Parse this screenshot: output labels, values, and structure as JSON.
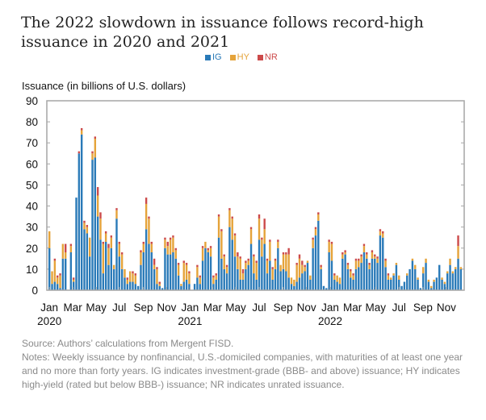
{
  "chart_data": {
    "type": "bar",
    "stacked": true,
    "title": "The 2022 slowdown in issuance follows record-high issuance in 2020 and 2021",
    "ylabel": "Issuance (in billions of U.S. dollars)",
    "xlabel": "",
    "ylim": [
      0,
      90
    ],
    "yticks": [
      0,
      10,
      20,
      30,
      40,
      50,
      60,
      70,
      80,
      90
    ],
    "grid": false,
    "legend_position": "top-center",
    "x_frequency": "weekly",
    "x_range": [
      "Jan 2020",
      "Nov 2022"
    ],
    "xtick_labels": [
      {
        "month": "Jan",
        "year": "2020",
        "week": 0
      },
      {
        "month": "Mar",
        "year": "",
        "week": 8.7
      },
      {
        "month": "May",
        "year": "",
        "week": 17.4
      },
      {
        "month": "Jul",
        "year": "",
        "week": 26
      },
      {
        "month": "Sep",
        "year": "",
        "week": 34.9
      },
      {
        "month": "Nov",
        "year": "",
        "week": 43.6
      },
      {
        "month": "Jan",
        "year": "2021",
        "week": 52.3
      },
      {
        "month": "Mar",
        "year": "",
        "week": 60.7
      },
      {
        "month": "May",
        "year": "",
        "week": 69.3
      },
      {
        "month": "Jul",
        "year": "",
        "week": 78
      },
      {
        "month": "Sep",
        "year": "",
        "week": 86.9
      },
      {
        "month": "Nov",
        "year": "",
        "week": 95.6
      },
      {
        "month": "Jan",
        "year": "2022",
        "week": 104.4
      },
      {
        "month": "Mar",
        "year": "",
        "week": 112.7
      },
      {
        "month": "May",
        "year": "",
        "week": 121.3
      },
      {
        "month": "Jul",
        "year": "",
        "week": 130
      },
      {
        "month": "Sep",
        "year": "",
        "week": 138.9
      },
      {
        "month": "Nov",
        "year": "",
        "week": 147.6
      }
    ],
    "series": [
      {
        "name": "IG",
        "color": "#2a7ab8",
        "values": [
          20,
          3,
          4,
          3,
          1,
          15,
          15,
          0,
          18,
          4,
          44,
          65,
          74,
          29,
          27,
          16,
          62,
          63,
          35,
          24,
          8,
          23,
          12,
          20,
          10,
          34,
          16,
          10,
          6,
          3,
          4,
          4,
          3,
          2,
          12,
          18,
          29,
          22,
          18,
          10,
          3,
          2,
          1,
          20,
          17,
          17,
          18,
          15,
          7,
          2,
          4,
          5,
          3,
          0,
          3,
          6,
          3,
          14,
          20,
          18,
          16,
          3,
          5,
          25,
          15,
          10,
          8,
          30,
          24,
          16,
          10,
          5,
          5,
          10,
          12,
          22,
          8,
          5,
          24,
          16,
          22,
          8,
          14,
          5,
          10,
          20,
          9,
          10,
          9,
          6,
          3,
          2,
          4,
          6,
          8,
          9,
          13,
          5,
          20,
          26,
          33,
          10,
          2,
          1,
          18,
          14,
          5,
          4,
          3,
          15,
          17,
          10,
          6,
          5,
          10,
          11,
          13,
          18,
          15,
          10,
          15,
          15,
          13,
          26,
          25,
          11,
          5,
          5,
          7,
          12,
          5,
          2,
          4,
          7,
          10,
          14,
          10,
          5,
          1,
          8,
          13,
          4,
          1,
          4,
          6,
          12,
          5,
          3,
          8,
          12,
          8,
          10,
          15,
          10
        ],
        "values_note": "estimated from bar heights"
      },
      {
        "name": "HY",
        "color": "#e5a33a",
        "values": [
          8,
          6,
          10,
          3,
          6,
          7,
          3,
          0,
          3,
          1,
          0,
          0,
          2,
          3,
          3,
          9,
          3,
          9,
          10,
          10,
          14,
          4,
          8,
          5,
          2,
          4,
          6,
          7,
          4,
          2,
          5,
          4,
          4,
          0,
          6,
          4,
          12,
          12,
          4,
          2,
          7,
          1,
          0,
          4,
          4,
          7,
          7,
          4,
          5,
          1,
          9,
          7,
          5,
          0,
          0,
          5,
          3,
          6,
          3,
          1,
          4,
          3,
          2,
          10,
          13,
          6,
          3,
          8,
          10,
          10,
          6,
          10,
          3,
          3,
          2,
          7,
          8,
          8,
          10,
          8,
          7,
          6,
          9,
          5,
          4,
          3,
          3,
          7,
          8,
          11,
          3,
          3,
          8,
          9,
          4,
          2,
          1,
          2,
          4,
          3,
          3,
          1,
          0,
          0,
          5,
          8,
          2,
          3,
          3,
          2,
          1,
          2,
          3,
          2,
          4,
          3,
          3,
          3,
          2,
          2,
          3,
          1,
          2,
          2,
          2,
          3,
          2,
          1,
          1,
          1,
          2,
          0,
          0,
          1,
          0,
          1,
          2,
          1,
          0,
          3,
          2,
          1,
          1,
          1,
          0,
          0,
          1,
          1,
          1,
          3,
          1,
          1,
          6,
          1
        ],
        "values_note": "estimated from bar heights"
      },
      {
        "name": "NR",
        "color": "#cc4a4a",
        "values": [
          0,
          0,
          1,
          1,
          1,
          0,
          4,
          0,
          1,
          1,
          0,
          1,
          1,
          1,
          1,
          0,
          1,
          1,
          4,
          3,
          1,
          1,
          2,
          1,
          0,
          1,
          1,
          1,
          0,
          1,
          0,
          1,
          1,
          0,
          1,
          1,
          3,
          1,
          1,
          3,
          1,
          1,
          0,
          1,
          2,
          1,
          1,
          1,
          1,
          0,
          1,
          1,
          1,
          0,
          0,
          1,
          1,
          1,
          0,
          1,
          1,
          1,
          1,
          1,
          1,
          1,
          1,
          1,
          1,
          1,
          2,
          1,
          2,
          1,
          1,
          1,
          1,
          1,
          2,
          1,
          5,
          1,
          1,
          1,
          1,
          1,
          0,
          1,
          1,
          3,
          0,
          0,
          1,
          2,
          2,
          1,
          0,
          0,
          1,
          1,
          1,
          1,
          0,
          0,
          1,
          1,
          1,
          0,
          0,
          1,
          1,
          1,
          1,
          1,
          1,
          1,
          1,
          1,
          1,
          1,
          1,
          1,
          1,
          1,
          1,
          1,
          1,
          0,
          0,
          0,
          0,
          0,
          0,
          0,
          0,
          0,
          0,
          0,
          0,
          0,
          0,
          0,
          0,
          0,
          0,
          0,
          0,
          0,
          0,
          0,
          0,
          0,
          5,
          0
        ],
        "values_note": "estimated from bar heights"
      }
    ]
  },
  "legend": [
    {
      "label": "IG",
      "color": "#2a7ab8"
    },
    {
      "label": "HY",
      "color": "#e5a33a"
    },
    {
      "label": "NR",
      "color": "#cc4a4a"
    }
  ],
  "source": "Source:  Authors’ calculations from Mergent FISD.",
  "notes": "Notes: Weekly issuance by nonfinancial, U.S.-domiciled companies, with maturities of at least one year and no more than forty years. IG indicates investment-grade (BBB- and above) issuance; HY indicates high-yield (rated but below BBB-) issuance; NR indicates unrated issuance."
}
